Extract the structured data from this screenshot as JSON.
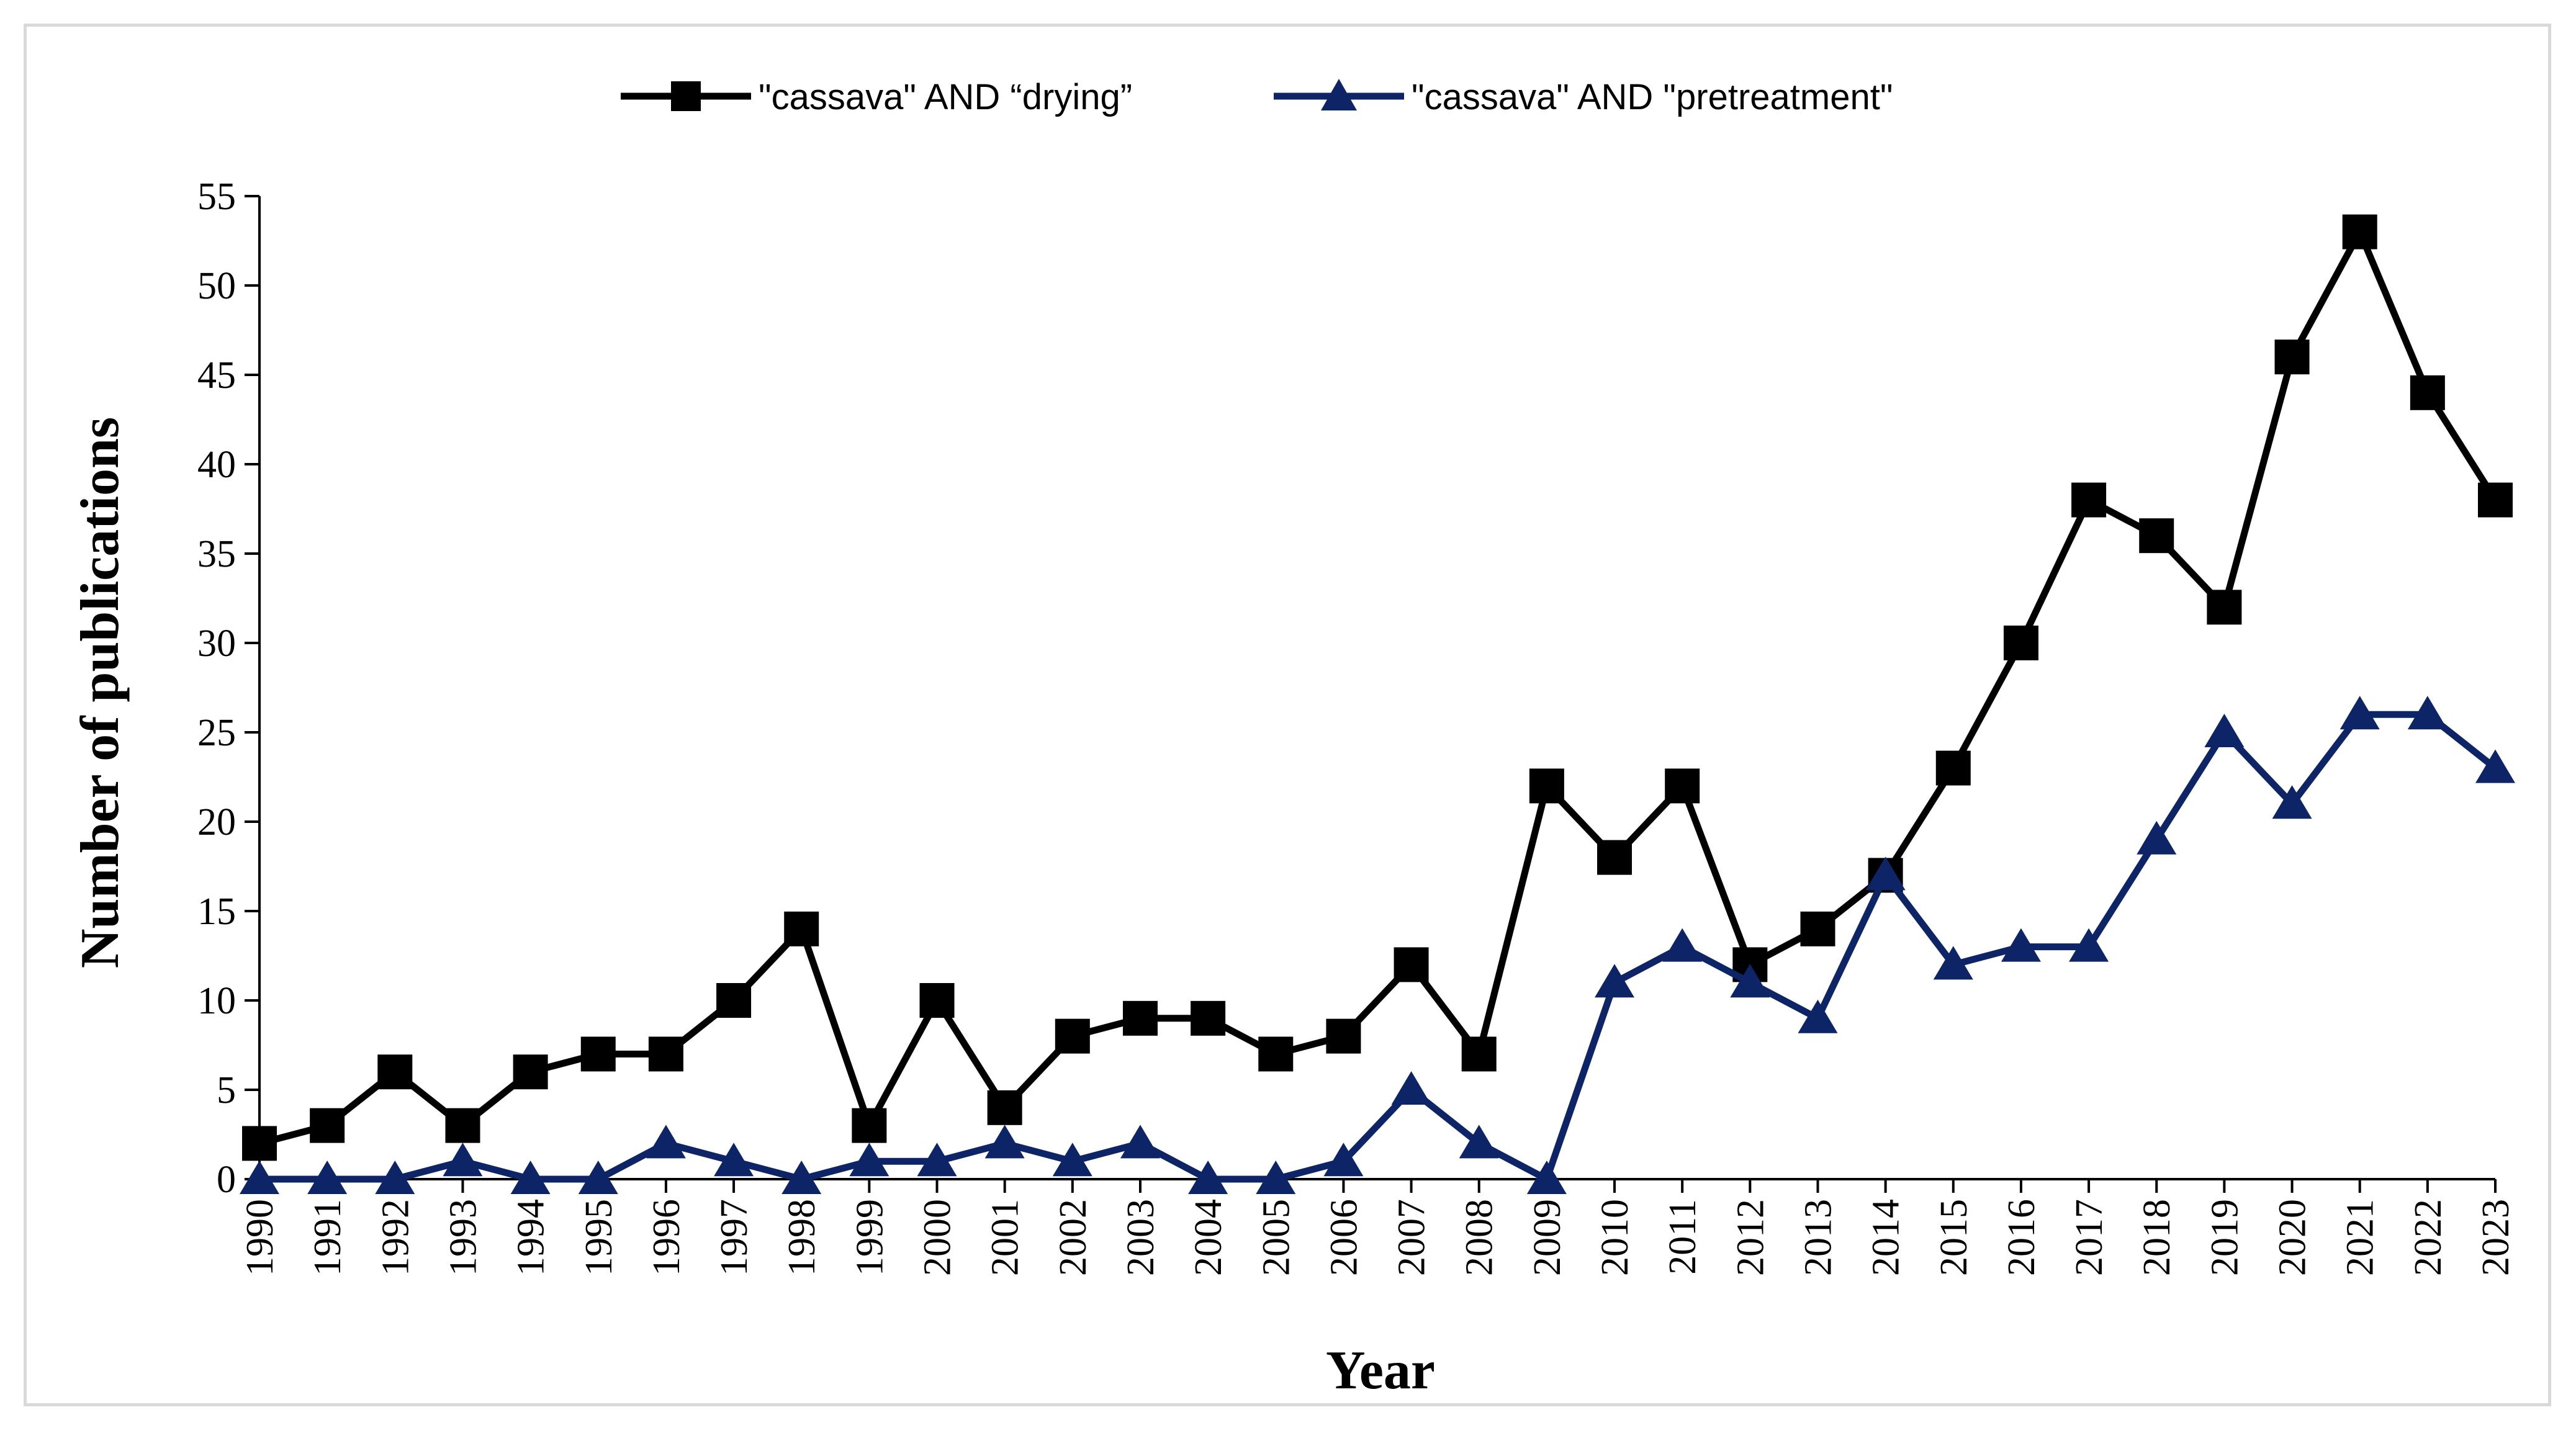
{
  "chart_data": {
    "type": "line",
    "title": "",
    "xlabel": "Year",
    "ylabel": "Number of publications",
    "x": [
      "1990",
      "1991",
      "1992",
      "1993",
      "1994",
      "1995",
      "1996",
      "1997",
      "1998",
      "1999",
      "2000",
      "2001",
      "2002",
      "2003",
      "2004",
      "2005",
      "2006",
      "2007",
      "2008",
      "2009",
      "2010",
      "2011",
      "2012",
      "2013",
      "2014",
      "2015",
      "2016",
      "2017",
      "2018",
      "2019",
      "2020",
      "2021",
      "2022",
      "2023"
    ],
    "ylim": [
      0,
      55
    ],
    "yticks": [
      "0",
      "5",
      "10",
      "15",
      "20",
      "25",
      "30",
      "35",
      "40",
      "45",
      "50",
      "55"
    ],
    "grid": false,
    "legend_position": "top-center",
    "series": [
      {
        "name": "\"cassava\" AND “drying”",
        "marker": "square",
        "color": "#000000",
        "values": [
          2,
          3,
          6,
          3,
          6,
          7,
          7,
          10,
          14,
          3,
          10,
          4,
          8,
          9,
          9,
          7,
          8,
          12,
          7,
          22,
          18,
          22,
          12,
          14,
          17,
          23,
          30,
          38,
          36,
          32,
          46,
          53,
          44,
          38
        ]
      },
      {
        "name": "\"cassava\" AND \"pretreatment\"",
        "marker": "triangle",
        "color": "#0d2466",
        "values": [
          0,
          0,
          0,
          1,
          0,
          0,
          2,
          1,
          0,
          1,
          1,
          2,
          1,
          2,
          0,
          0,
          1,
          5,
          2,
          0,
          11,
          13,
          11,
          9,
          17,
          12,
          13,
          13,
          19,
          25,
          21,
          26,
          26,
          23
        ]
      }
    ]
  }
}
